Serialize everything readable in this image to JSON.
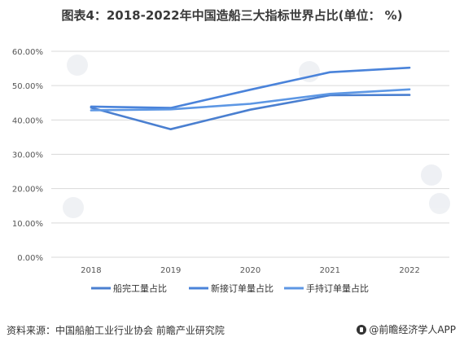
{
  "title": "图表4：2018-2022年中国造船三大指标世界占比(单位： %)",
  "source": "资料来源：中国船舶工业行业协会 前瞻产业研究院",
  "brand": "@前瞻经济学人APP",
  "colors": {
    "series1": "#4a7fd0",
    "series2": "#4a83da",
    "series3": "#5d97e4",
    "grid": "#d9d9d9",
    "axis_text": "#555555"
  },
  "chart_data": {
    "type": "line",
    "categories": [
      "2018",
      "2019",
      "2020",
      "2021",
      "2022"
    ],
    "ylim": [
      0,
      60
    ],
    "yticks": [
      "0.00%",
      "10.00%",
      "20.00%",
      "30.00%",
      "40.00%",
      "50.00%",
      "60.00%"
    ],
    "grid": true,
    "legend_position": "bottom",
    "series": [
      {
        "name": "船完工量占比",
        "values": [
          43.6,
          37.3,
          43.0,
          47.2,
          47.3
        ]
      },
      {
        "name": "新接订单量占比",
        "values": [
          43.9,
          43.5,
          48.8,
          53.9,
          55.2
        ]
      },
      {
        "name": "手持订单量占比",
        "values": [
          42.8,
          43.1,
          44.7,
          47.6,
          48.9
        ]
      }
    ]
  }
}
